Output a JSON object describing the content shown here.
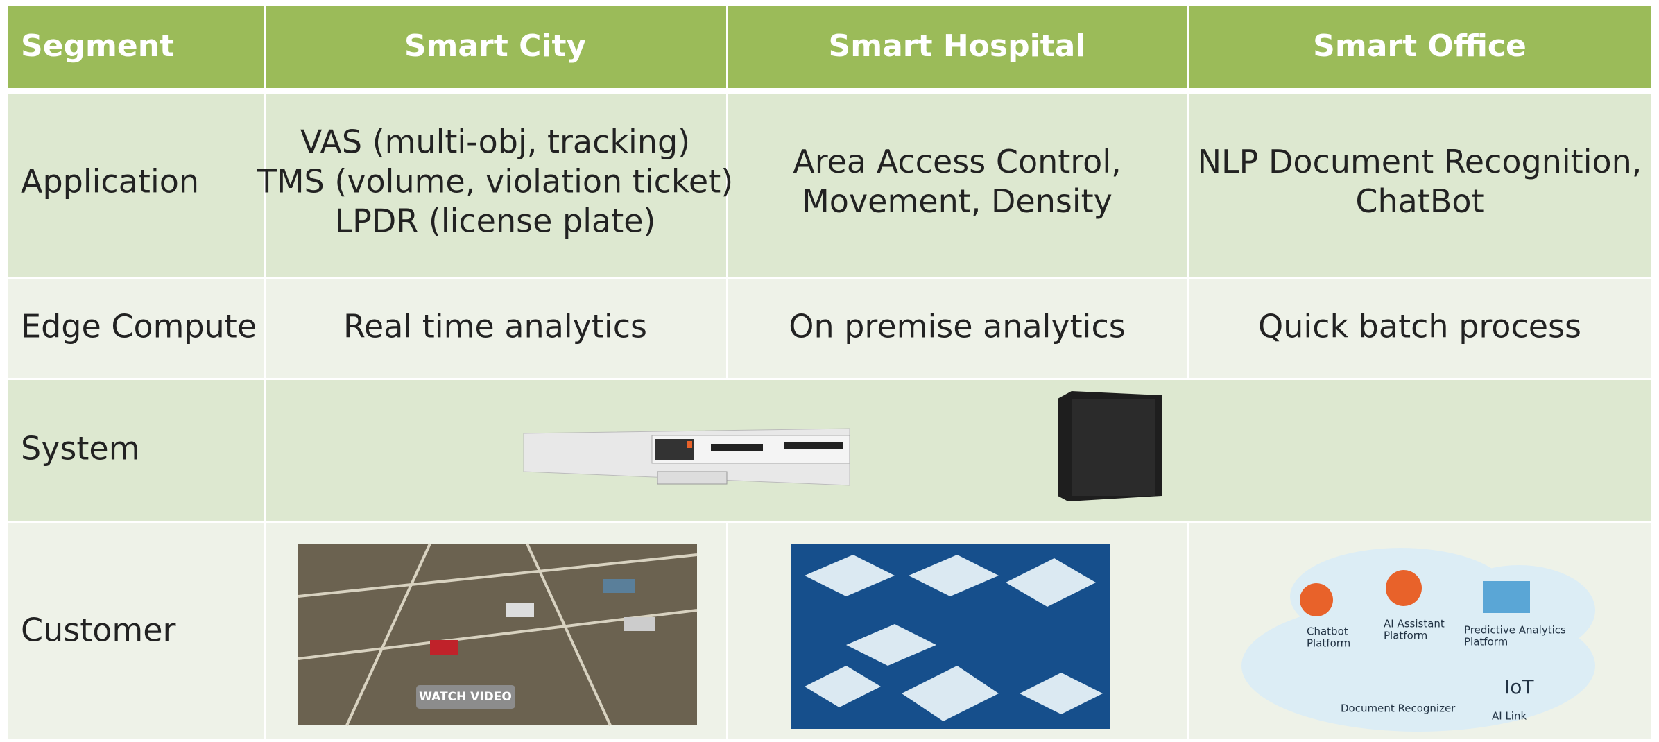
{
  "table": {
    "header": [
      "Segment",
      "Smart City",
      "Smart Hospital",
      "Smart Office"
    ],
    "rows": [
      {
        "label": "Application",
        "cells": [
          [
            "VAS (multi-obj, tracking)",
            "TMS (volume, violation ticket)",
            "LPDR (license plate)"
          ],
          [
            "Area Access Control,",
            "Movement, Density"
          ],
          [
            "NLP Document Recognition,",
            "ChatBot"
          ]
        ]
      },
      {
        "label": "Edge Compute",
        "cells": [
          [
            "Real time analytics"
          ],
          [
            "On premise analytics"
          ],
          [
            "Quick batch process"
          ]
        ]
      },
      {
        "label": "System"
      },
      {
        "label": "Customer"
      }
    ]
  },
  "images": {
    "city_button": "WATCH VIDEO",
    "office_labels": [
      [
        "Chatbot",
        "Platform"
      ],
      [
        "AI Assistant",
        "Platform"
      ],
      [
        "Predictive Analytics",
        "Platform"
      ],
      [
        "Document Recognizer"
      ],
      [
        "IoT"
      ],
      [
        "AI Link"
      ]
    ]
  }
}
